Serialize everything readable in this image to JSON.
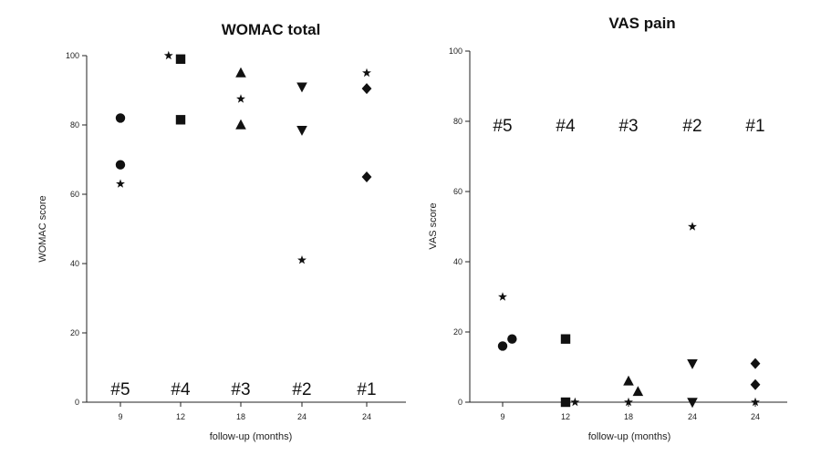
{
  "chart_data": [
    {
      "type": "scatter",
      "title": "WOMAC total",
      "xlabel": "follow-up (months)",
      "ylabel": "WOMAC score",
      "ylim": [
        0,
        100
      ],
      "yticks": [
        0,
        20,
        40,
        60,
        80,
        100
      ],
      "categories": [
        "9",
        "12",
        "18",
        "24",
        "24"
      ],
      "group_labels": [
        "#5",
        "#4",
        "#3",
        "#2",
        "#1"
      ],
      "group_label_y": 4,
      "grid": false,
      "points": [
        {
          "cat": 0,
          "offset": 0.0,
          "y": 82,
          "marker": "circle"
        },
        {
          "cat": 0,
          "offset": 0.0,
          "y": 68.5,
          "marker": "circle"
        },
        {
          "cat": 0,
          "offset": 0.0,
          "y": 63,
          "marker": "star"
        },
        {
          "cat": 1,
          "offset": -0.2,
          "y": 100,
          "marker": "star"
        },
        {
          "cat": 1,
          "offset": 0.0,
          "y": 99,
          "marker": "square"
        },
        {
          "cat": 1,
          "offset": 0.0,
          "y": 81.5,
          "marker": "square"
        },
        {
          "cat": 2,
          "offset": 0.0,
          "y": 95,
          "marker": "triangle"
        },
        {
          "cat": 2,
          "offset": 0.0,
          "y": 87.5,
          "marker": "star"
        },
        {
          "cat": 2,
          "offset": 0.0,
          "y": 80,
          "marker": "triangle"
        },
        {
          "cat": 3,
          "offset": 0.0,
          "y": 91,
          "marker": "triangle-down"
        },
        {
          "cat": 3,
          "offset": 0.0,
          "y": 78.5,
          "marker": "triangle-down"
        },
        {
          "cat": 3,
          "offset": 0.0,
          "y": 41,
          "marker": "star"
        },
        {
          "cat": 4,
          "offset": 0.0,
          "y": 95,
          "marker": "star"
        },
        {
          "cat": 4,
          "offset": 0.0,
          "y": 90.5,
          "marker": "diamond"
        },
        {
          "cat": 4,
          "offset": 0.0,
          "y": 65,
          "marker": "diamond"
        }
      ]
    },
    {
      "type": "scatter",
      "title": "VAS pain",
      "xlabel": "follow-up (months)",
      "ylabel": "VAS score",
      "ylim": [
        0,
        100
      ],
      "yticks": [
        0,
        20,
        40,
        60,
        80,
        100
      ],
      "categories": [
        "9",
        "12",
        "18",
        "24",
        "24"
      ],
      "group_labels": [
        "#5",
        "#4",
        "#3",
        "#2",
        "#1"
      ],
      "group_label_y": 79,
      "grid": false,
      "points": [
        {
          "cat": 0,
          "offset": 0.0,
          "y": 30,
          "marker": "star"
        },
        {
          "cat": 0,
          "offset": 0.0,
          "y": 16,
          "marker": "circle"
        },
        {
          "cat": 0,
          "offset": 0.15,
          "y": 18,
          "marker": "circle"
        },
        {
          "cat": 1,
          "offset": 0.0,
          "y": 18,
          "marker": "square"
        },
        {
          "cat": 1,
          "offset": 0.0,
          "y": 0,
          "marker": "square"
        },
        {
          "cat": 1,
          "offset": 0.15,
          "y": 0,
          "marker": "star"
        },
        {
          "cat": 2,
          "offset": 0.0,
          "y": 6,
          "marker": "triangle"
        },
        {
          "cat": 2,
          "offset": 0.15,
          "y": 3,
          "marker": "triangle"
        },
        {
          "cat": 2,
          "offset": 0.0,
          "y": 0,
          "marker": "star"
        },
        {
          "cat": 3,
          "offset": 0.0,
          "y": 50,
          "marker": "star"
        },
        {
          "cat": 3,
          "offset": 0.0,
          "y": 11,
          "marker": "triangle-down"
        },
        {
          "cat": 3,
          "offset": 0.0,
          "y": 0,
          "marker": "triangle-down"
        },
        {
          "cat": 4,
          "offset": 0.0,
          "y": 11,
          "marker": "diamond"
        },
        {
          "cat": 4,
          "offset": 0.0,
          "y": 5,
          "marker": "diamond"
        },
        {
          "cat": 4,
          "offset": 0.0,
          "y": 0,
          "marker": "star"
        }
      ]
    }
  ]
}
